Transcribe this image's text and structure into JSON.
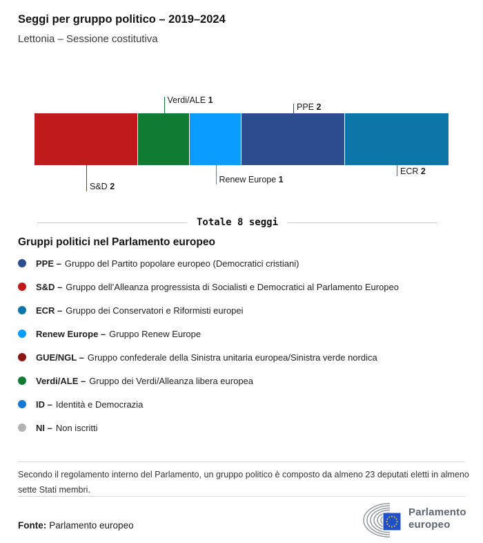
{
  "header": {
    "title": "Seggi per gruppo politico – 2019–2024",
    "subtitle": "Lettonia – Sessione costitutiva"
  },
  "chart_data": {
    "type": "bar",
    "variant": "horizontal-stacked-seats",
    "title": "Seggi per gruppo politico – 2019–2024",
    "subtitle": "Lettonia – Sessione costitutiva",
    "total_seats": 8,
    "total_label": "Totale 8 seggi",
    "legend_position": "below",
    "segments": [
      {
        "group": "S&D",
        "seats": 2,
        "color": "#c01a1a",
        "callout_side": "below",
        "callout_len": 38
      },
      {
        "group": "Verdi/ALE",
        "seats": 1,
        "color": "#0f7b33",
        "callout_side": "above",
        "callout_len": 24
      },
      {
        "group": "Renew Europe",
        "seats": 1,
        "color": "#0a9dff",
        "callout_side": "below",
        "callout_len": 28
      },
      {
        "group": "PPE",
        "seats": 2,
        "color": "#2e4d8e",
        "callout_side": "above",
        "callout_len": 14
      },
      {
        "group": "ECR",
        "seats": 2,
        "color": "#0d76a8",
        "callout_side": "below",
        "callout_len": 16
      }
    ]
  },
  "legend": {
    "heading": "Gruppi politici nel Parlamento europeo",
    "items": [
      {
        "abbr": "PPE –",
        "name": "Gruppo del Partito popolare europeo (Democratici cristiani)",
        "color": "#2e4d8e"
      },
      {
        "abbr": "S&D –",
        "name": "Gruppo dell’Alleanza progressista di Socialisti e Democratici al Parlamento Europeo",
        "color": "#c01a1a"
      },
      {
        "abbr": "ECR –",
        "name": "Gruppo dei Conservatori e Riformisti europei",
        "color": "#0d76a8"
      },
      {
        "abbr": "Renew Europe –",
        "name": "Gruppo Renew Europe",
        "color": "#0a9dff"
      },
      {
        "abbr": "GUE/NGL –",
        "name": "Gruppo confederale della Sinistra unitaria europea/Sinistra verde nordica",
        "color": "#8a1713"
      },
      {
        "abbr": "Verdi/ALE –",
        "name": "Gruppo dei Verdi/Alleanza libera europea",
        "color": "#0f7b33"
      },
      {
        "abbr": "ID –",
        "name": "Identità e Democrazia",
        "color": "#1478d2"
      },
      {
        "abbr": "NI –",
        "name": "Non iscritti",
        "color": "#b3b3b3"
      }
    ]
  },
  "footer": {
    "note_line1": "Secondo il regolamento interno del Parlamento, un gruppo politico è composto da almeno 23 deputati eletti in almeno",
    "note_line2": "sette Stati membri.",
    "source_label": "Fonte:",
    "source": "Parlamento europeo",
    "logo_text_line1": "Parlamento",
    "logo_text_line2": "europeo"
  }
}
